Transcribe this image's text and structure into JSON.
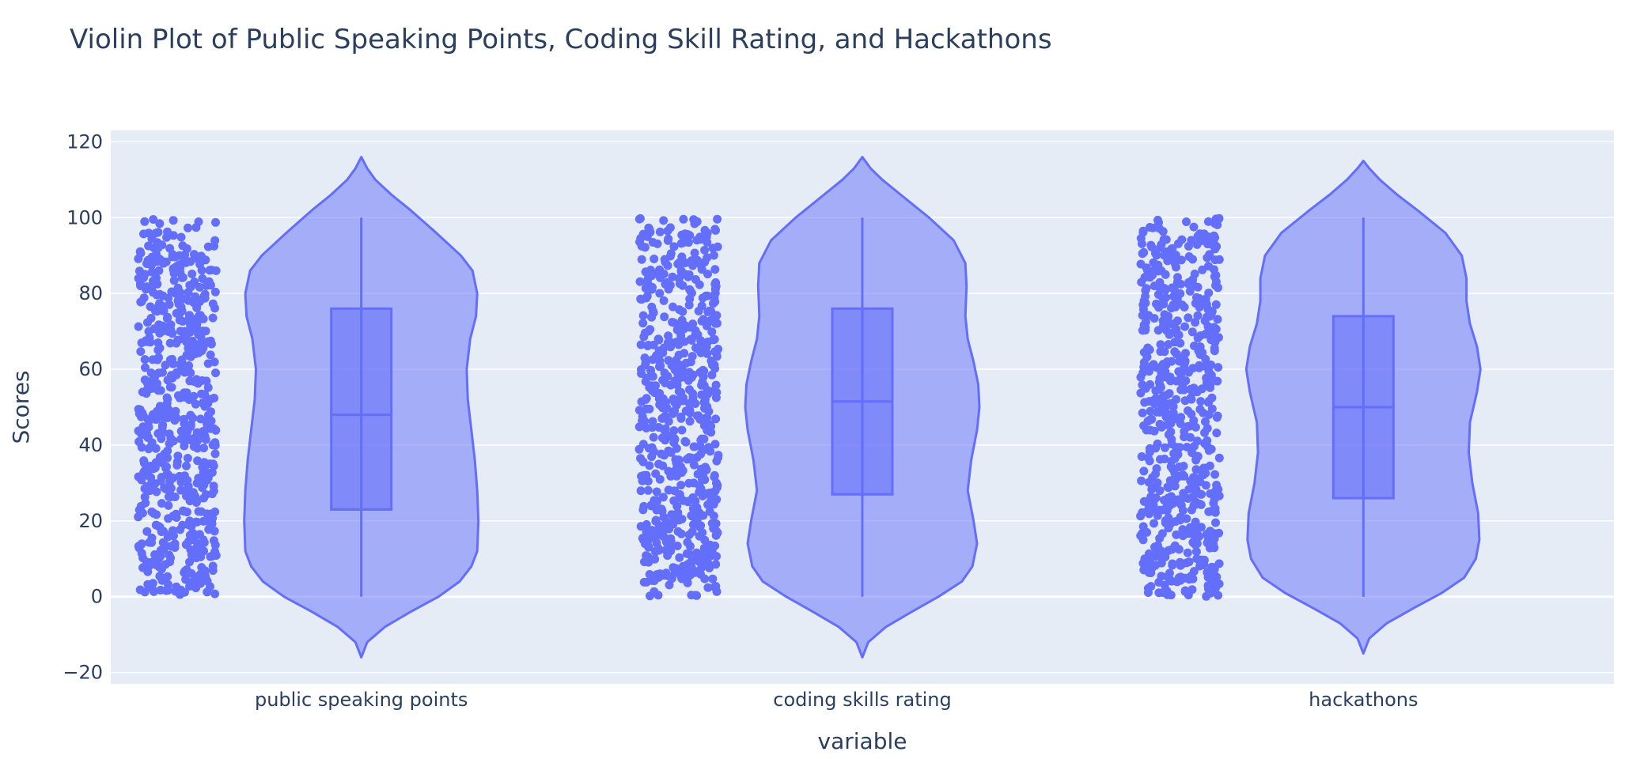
{
  "chart_data": {
    "type": "violin",
    "title": "Violin Plot of Public Speaking Points, Coding Skill Rating, and Hackathons",
    "xlabel": "variable",
    "ylabel": "Scores",
    "ylim": [
      -23,
      123
    ],
    "yticks": [
      -20,
      0,
      20,
      40,
      60,
      80,
      100,
      120
    ],
    "ytick_labels": [
      "−20",
      "0",
      "20",
      "40",
      "60",
      "80",
      "100",
      "120"
    ],
    "grid": true,
    "points": "all",
    "colors": {
      "violin": "#636efa",
      "plot_bg": "#e5ecf6",
      "text": "#2a3f5f"
    },
    "categories": [
      "public speaking points",
      "coding skills rating",
      "hackathons"
    ],
    "series": [
      {
        "category": "public speaking points",
        "box": {
          "min": 0,
          "q1": 23,
          "median": 48,
          "q3": 76,
          "max": 100
        },
        "kde_range": [
          -16,
          116
        ],
        "density": [
          [
            -16,
            0.0
          ],
          [
            -12,
            0.05
          ],
          [
            -8,
            0.2
          ],
          [
            -4,
            0.42
          ],
          [
            0,
            0.66
          ],
          [
            4,
            0.84
          ],
          [
            8,
            0.94
          ],
          [
            12,
            0.99
          ],
          [
            20,
            1.0
          ],
          [
            28,
            0.99
          ],
          [
            36,
            0.97
          ],
          [
            44,
            0.94
          ],
          [
            52,
            0.91
          ],
          [
            60,
            0.9
          ],
          [
            68,
            0.93
          ],
          [
            74,
            0.98
          ],
          [
            80,
            0.99
          ],
          [
            86,
            0.95
          ],
          [
            90,
            0.85
          ],
          [
            96,
            0.64
          ],
          [
            102,
            0.42
          ],
          [
            106,
            0.26
          ],
          [
            110,
            0.12
          ],
          [
            113,
            0.05
          ],
          [
            116,
            0.0
          ]
        ]
      },
      {
        "category": "coding skills rating",
        "box": {
          "min": 0,
          "q1": 27,
          "median": 51.5,
          "q3": 76,
          "max": 100
        },
        "kde_range": [
          -16,
          116
        ],
        "density": [
          [
            -16,
            0.0
          ],
          [
            -12,
            0.05
          ],
          [
            -8,
            0.2
          ],
          [
            -4,
            0.42
          ],
          [
            0,
            0.65
          ],
          [
            4,
            0.85
          ],
          [
            8,
            0.94
          ],
          [
            14,
            0.98
          ],
          [
            20,
            0.95
          ],
          [
            28,
            0.9
          ],
          [
            36,
            0.93
          ],
          [
            44,
            0.98
          ],
          [
            50,
            1.0
          ],
          [
            56,
            0.99
          ],
          [
            62,
            0.95
          ],
          [
            68,
            0.9
          ],
          [
            74,
            0.88
          ],
          [
            82,
            0.89
          ],
          [
            88,
            0.88
          ],
          [
            94,
            0.78
          ],
          [
            100,
            0.57
          ],
          [
            106,
            0.33
          ],
          [
            110,
            0.17
          ],
          [
            113,
            0.07
          ],
          [
            116,
            0.0
          ]
        ]
      },
      {
        "category": "hackathons",
        "box": {
          "min": 0,
          "q1": 26,
          "median": 50,
          "q3": 74,
          "max": 100
        },
        "kde_range": [
          -15,
          115
        ],
        "density": [
          [
            -15,
            0.0
          ],
          [
            -11,
            0.05
          ],
          [
            -7,
            0.2
          ],
          [
            -3,
            0.43
          ],
          [
            1,
            0.67
          ],
          [
            5,
            0.86
          ],
          [
            10,
            0.96
          ],
          [
            15,
            0.99
          ],
          [
            22,
            0.98
          ],
          [
            30,
            0.93
          ],
          [
            38,
            0.9
          ],
          [
            46,
            0.91
          ],
          [
            54,
            0.97
          ],
          [
            60,
            1.0
          ],
          [
            66,
            0.97
          ],
          [
            72,
            0.91
          ],
          [
            78,
            0.88
          ],
          [
            84,
            0.88
          ],
          [
            90,
            0.84
          ],
          [
            96,
            0.7
          ],
          [
            102,
            0.46
          ],
          [
            106,
            0.29
          ],
          [
            110,
            0.14
          ],
          [
            113,
            0.05
          ],
          [
            115,
            0.0
          ]
        ]
      }
    ]
  }
}
